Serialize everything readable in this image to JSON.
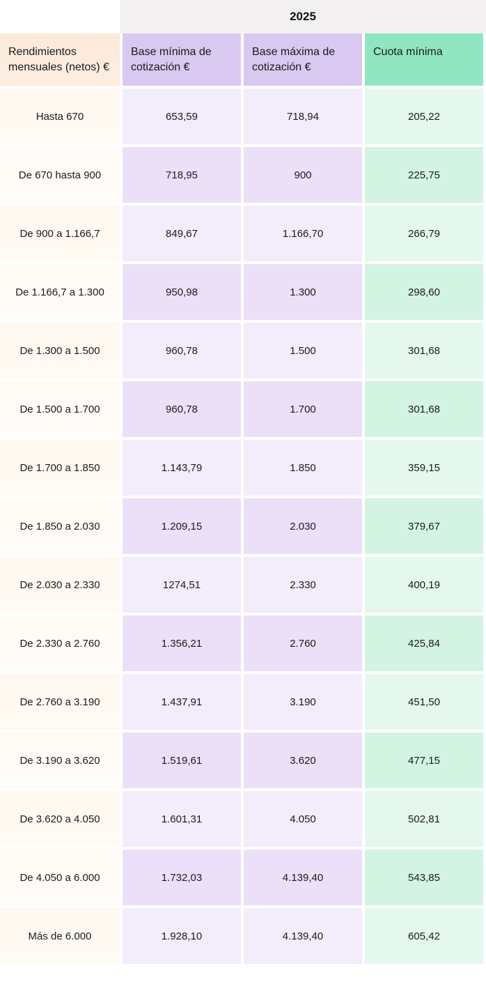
{
  "table": {
    "year_label": "2025",
    "columns": [
      "Rendimientos mensuales (netos) €",
      "Base mínima de cotización €",
      "Base máxima de cotización €",
      "Cuota mínima"
    ],
    "header_bg_colors": [
      "#fceadb",
      "#d9c8f0",
      "#d9c8f0",
      "#8fe6c1"
    ],
    "body_col_bg_even": [
      "#fff8ef",
      "#f3ecfb",
      "#f3ecfb",
      "#e4f8ee"
    ],
    "body_col_bg_odd": [
      "#fffbf5",
      "#ebe0f8",
      "#ebe0f8",
      "#d3f3e3"
    ],
    "font_size_header": 16,
    "font_size_body": 15,
    "rows": [
      [
        "Hasta 670",
        "653,59",
        "718,94",
        "205,22"
      ],
      [
        "De 670 hasta 900",
        "718,95",
        "900",
        "225,75"
      ],
      [
        "De 900 a 1.166,7",
        "849,67",
        "1.166,70",
        "266,79"
      ],
      [
        "De 1.166,7 a 1.300",
        "950,98",
        "1.300",
        "298,60"
      ],
      [
        "De 1.300 a 1.500",
        "960,78",
        "1.500",
        "301,68"
      ],
      [
        "De 1.500 a 1.700",
        "960,78",
        "1.700",
        "301,68"
      ],
      [
        "De 1.700 a 1.850",
        "1.143,79",
        "1.850",
        "359,15"
      ],
      [
        "De 1.850 a 2.030",
        "1.209,15",
        "2.030",
        "379,67"
      ],
      [
        "De 2.030 a 2.330",
        "1274,51",
        "2.330",
        "400,19"
      ],
      [
        "De 2.330 a 2.760",
        "1.356,21",
        "2.760",
        "425,84"
      ],
      [
        "De 2.760 a 3.190",
        "1.437,91",
        "3.190",
        "451,50"
      ],
      [
        "De 3.190 a 3.620",
        "1.519,61",
        "3.620",
        "477,15"
      ],
      [
        "De 3.620 a 4.050",
        "1.601,31",
        "4.050",
        "502,81"
      ],
      [
        "De 4.050 a 6.000",
        "1.732,03",
        "4.139,40",
        "543,85"
      ],
      [
        "Más de 6.000",
        "1.928,10",
        "4.139,40",
        "605,42"
      ]
    ]
  }
}
